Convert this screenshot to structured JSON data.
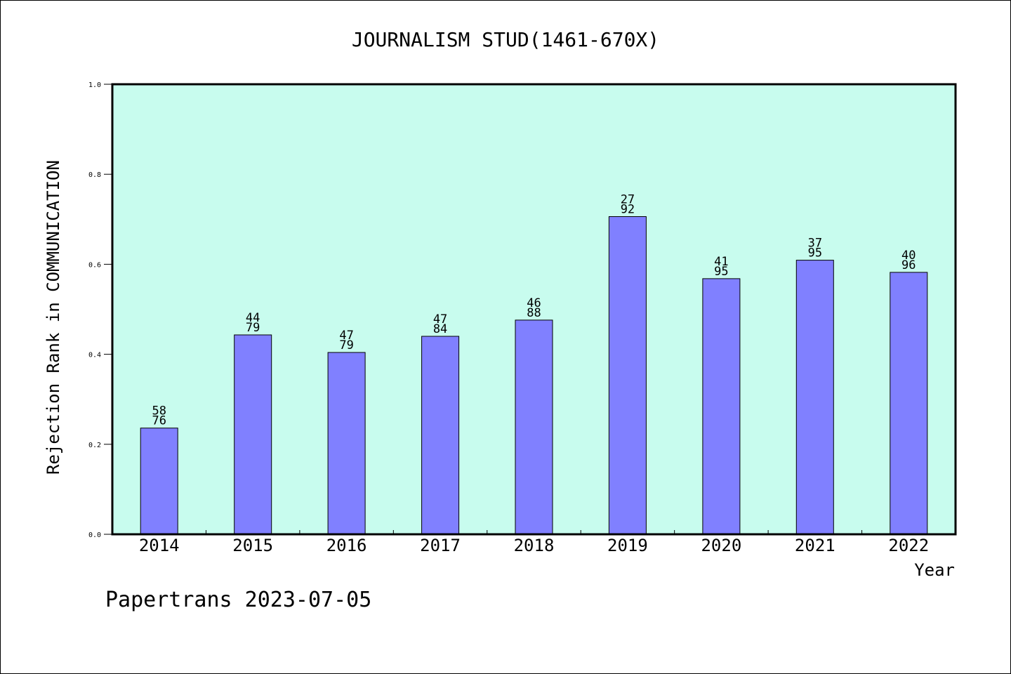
{
  "chart_data": {
    "type": "bar",
    "title": "JOURNALISM STUD(1461-670X)",
    "xlabel": "Year",
    "ylabel": "Rejection Rank in COMMUNICATION",
    "footer": "Papertrans 2023-07-05",
    "ylim": [
      0,
      1.0
    ],
    "yticks": [
      "0.0",
      "0.2",
      "0.4",
      "0.6",
      "0.8",
      "1.0"
    ],
    "categories": [
      "2014",
      "2015",
      "2016",
      "2017",
      "2018",
      "2019",
      "2020",
      "2021",
      "2022"
    ],
    "values": [
      0.236,
      0.443,
      0.404,
      0.44,
      0.476,
      0.706,
      0.568,
      0.609,
      0.582
    ],
    "label_top": [
      "58",
      "44",
      "47",
      "47",
      "46",
      "27",
      "41",
      "37",
      "40"
    ],
    "label_bottom": [
      "76",
      "79",
      "79",
      "84",
      "88",
      "92",
      "95",
      "95",
      "96"
    ],
    "grid": false,
    "colors": {
      "plot_bg": "#c8fcee",
      "bar": "#8080ff",
      "axis": "#000000"
    }
  }
}
